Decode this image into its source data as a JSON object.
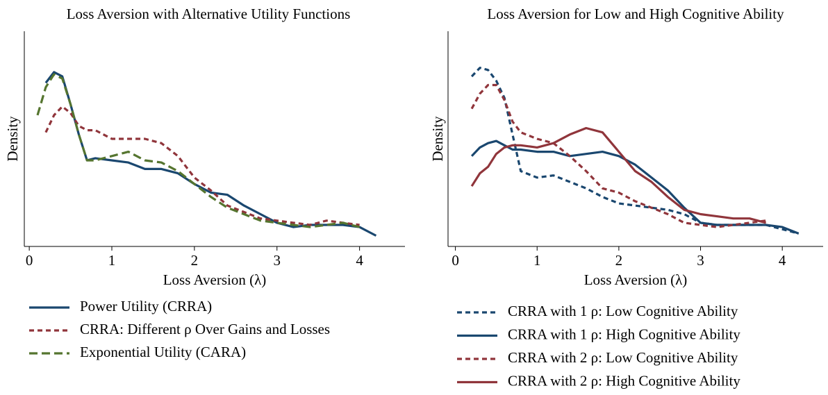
{
  "chart_data": [
    {
      "type": "line",
      "title": "Loss Aversion with Alternative Utility Functions",
      "xlabel": "Loss Aversion (λ)",
      "ylabel": "Density",
      "x": [
        0.1,
        0.2,
        0.3,
        0.4,
        0.5,
        0.6,
        0.7,
        0.8,
        1,
        1.2,
        1.4,
        1.6,
        1.8,
        2,
        2.2,
        2.4,
        2.6,
        2.8,
        3,
        3.2,
        3.4,
        3.6,
        3.8,
        4,
        4.2
      ],
      "xlim": [
        -0.06,
        4.55
      ],
      "xticks": [
        0,
        1,
        2,
        3,
        4
      ],
      "ylim": [
        0,
        1
      ],
      "legend": "bottom",
      "series": [
        {
          "name": "Power Utility (CRRA)",
          "color": "#1a476f",
          "style": "solid",
          "values": [
            null,
            0.76,
            0.81,
            0.79,
            0.66,
            0.52,
            0.4,
            0.41,
            0.4,
            0.39,
            0.36,
            0.36,
            0.34,
            0.29,
            0.25,
            0.24,
            0.19,
            0.15,
            0.11,
            0.09,
            0.1,
            0.1,
            0.1,
            0.09,
            0.05
          ]
        },
        {
          "name": "CRRA: Different ρ Over Gains and Losses",
          "color": "#90353b",
          "style": "dashed",
          "values": [
            null,
            0.53,
            0.61,
            0.65,
            0.62,
            0.56,
            0.54,
            0.54,
            0.5,
            0.5,
            0.5,
            0.48,
            0.42,
            0.32,
            0.26,
            0.19,
            0.16,
            0.13,
            0.12,
            0.11,
            0.1,
            0.12,
            0.11,
            0.1,
            null
          ]
        },
        {
          "name": "Exponential Utility (CARA)",
          "color": "#55752f",
          "style": "longdash",
          "values": [
            0.61,
            0.74,
            0.8,
            0.78,
            0.66,
            0.52,
            0.4,
            0.4,
            0.42,
            0.44,
            0.4,
            0.39,
            0.35,
            0.29,
            0.23,
            0.18,
            0.15,
            0.12,
            0.11,
            0.1,
            0.09,
            0.1,
            0.11,
            0.09,
            null
          ]
        }
      ]
    },
    {
      "type": "line",
      "title": "Loss Aversion for Low and High Cognitive Ability",
      "xlabel": "Loss Aversion (λ)",
      "ylabel": "Density",
      "x": [
        0.1,
        0.2,
        0.3,
        0.4,
        0.5,
        0.6,
        0.7,
        0.8,
        1,
        1.2,
        1.4,
        1.6,
        1.8,
        2,
        2.2,
        2.4,
        2.6,
        2.8,
        3,
        3.2,
        3.4,
        3.6,
        3.8,
        4,
        4.2
      ],
      "xlim": [
        -0.09,
        4.5
      ],
      "xticks": [
        0,
        1,
        2,
        3,
        4
      ],
      "ylim": [
        0,
        1
      ],
      "legend": "bottom",
      "series": [
        {
          "name": "CRRA with 1 ρ: Low Cognitive Ability",
          "color": "#1a476f",
          "style": "dashed",
          "values": [
            null,
            0.79,
            0.83,
            0.82,
            0.77,
            0.69,
            0.52,
            0.35,
            0.32,
            0.33,
            0.3,
            0.27,
            0.23,
            0.2,
            0.19,
            0.18,
            0.17,
            0.15,
            0.11,
            0.1,
            0.1,
            0.1,
            0.1,
            0.08,
            0.06
          ]
        },
        {
          "name": "CRRA with 1 ρ: High Cognitive Ability",
          "color": "#1a476f",
          "style": "solid",
          "values": [
            null,
            0.42,
            0.46,
            0.48,
            0.49,
            0.47,
            0.45,
            0.45,
            0.44,
            0.44,
            0.42,
            0.43,
            0.44,
            0.42,
            0.38,
            0.32,
            0.26,
            0.18,
            0.11,
            0.1,
            0.1,
            0.1,
            0.1,
            0.09,
            0.06
          ]
        },
        {
          "name": "CRRA with 2 ρ: Low Cognitive Ability",
          "color": "#90353b",
          "style": "dashed",
          "values": [
            null,
            0.64,
            0.71,
            0.75,
            0.75,
            0.68,
            0.58,
            0.53,
            0.5,
            0.48,
            0.42,
            0.35,
            0.27,
            0.25,
            0.21,
            0.18,
            0.15,
            0.11,
            0.1,
            0.09,
            0.1,
            0.11,
            0.12,
            null,
            null
          ]
        },
        {
          "name": "CRRA with 2 ρ: High Cognitive Ability",
          "color": "#90353b",
          "style": "solid",
          "values": [
            null,
            0.28,
            0.34,
            0.37,
            0.43,
            0.46,
            0.47,
            0.47,
            0.46,
            0.48,
            0.52,
            0.55,
            0.53,
            0.44,
            0.35,
            0.3,
            0.23,
            0.17,
            0.15,
            0.14,
            0.13,
            0.13,
            0.11,
            null,
            null
          ]
        }
      ]
    }
  ]
}
